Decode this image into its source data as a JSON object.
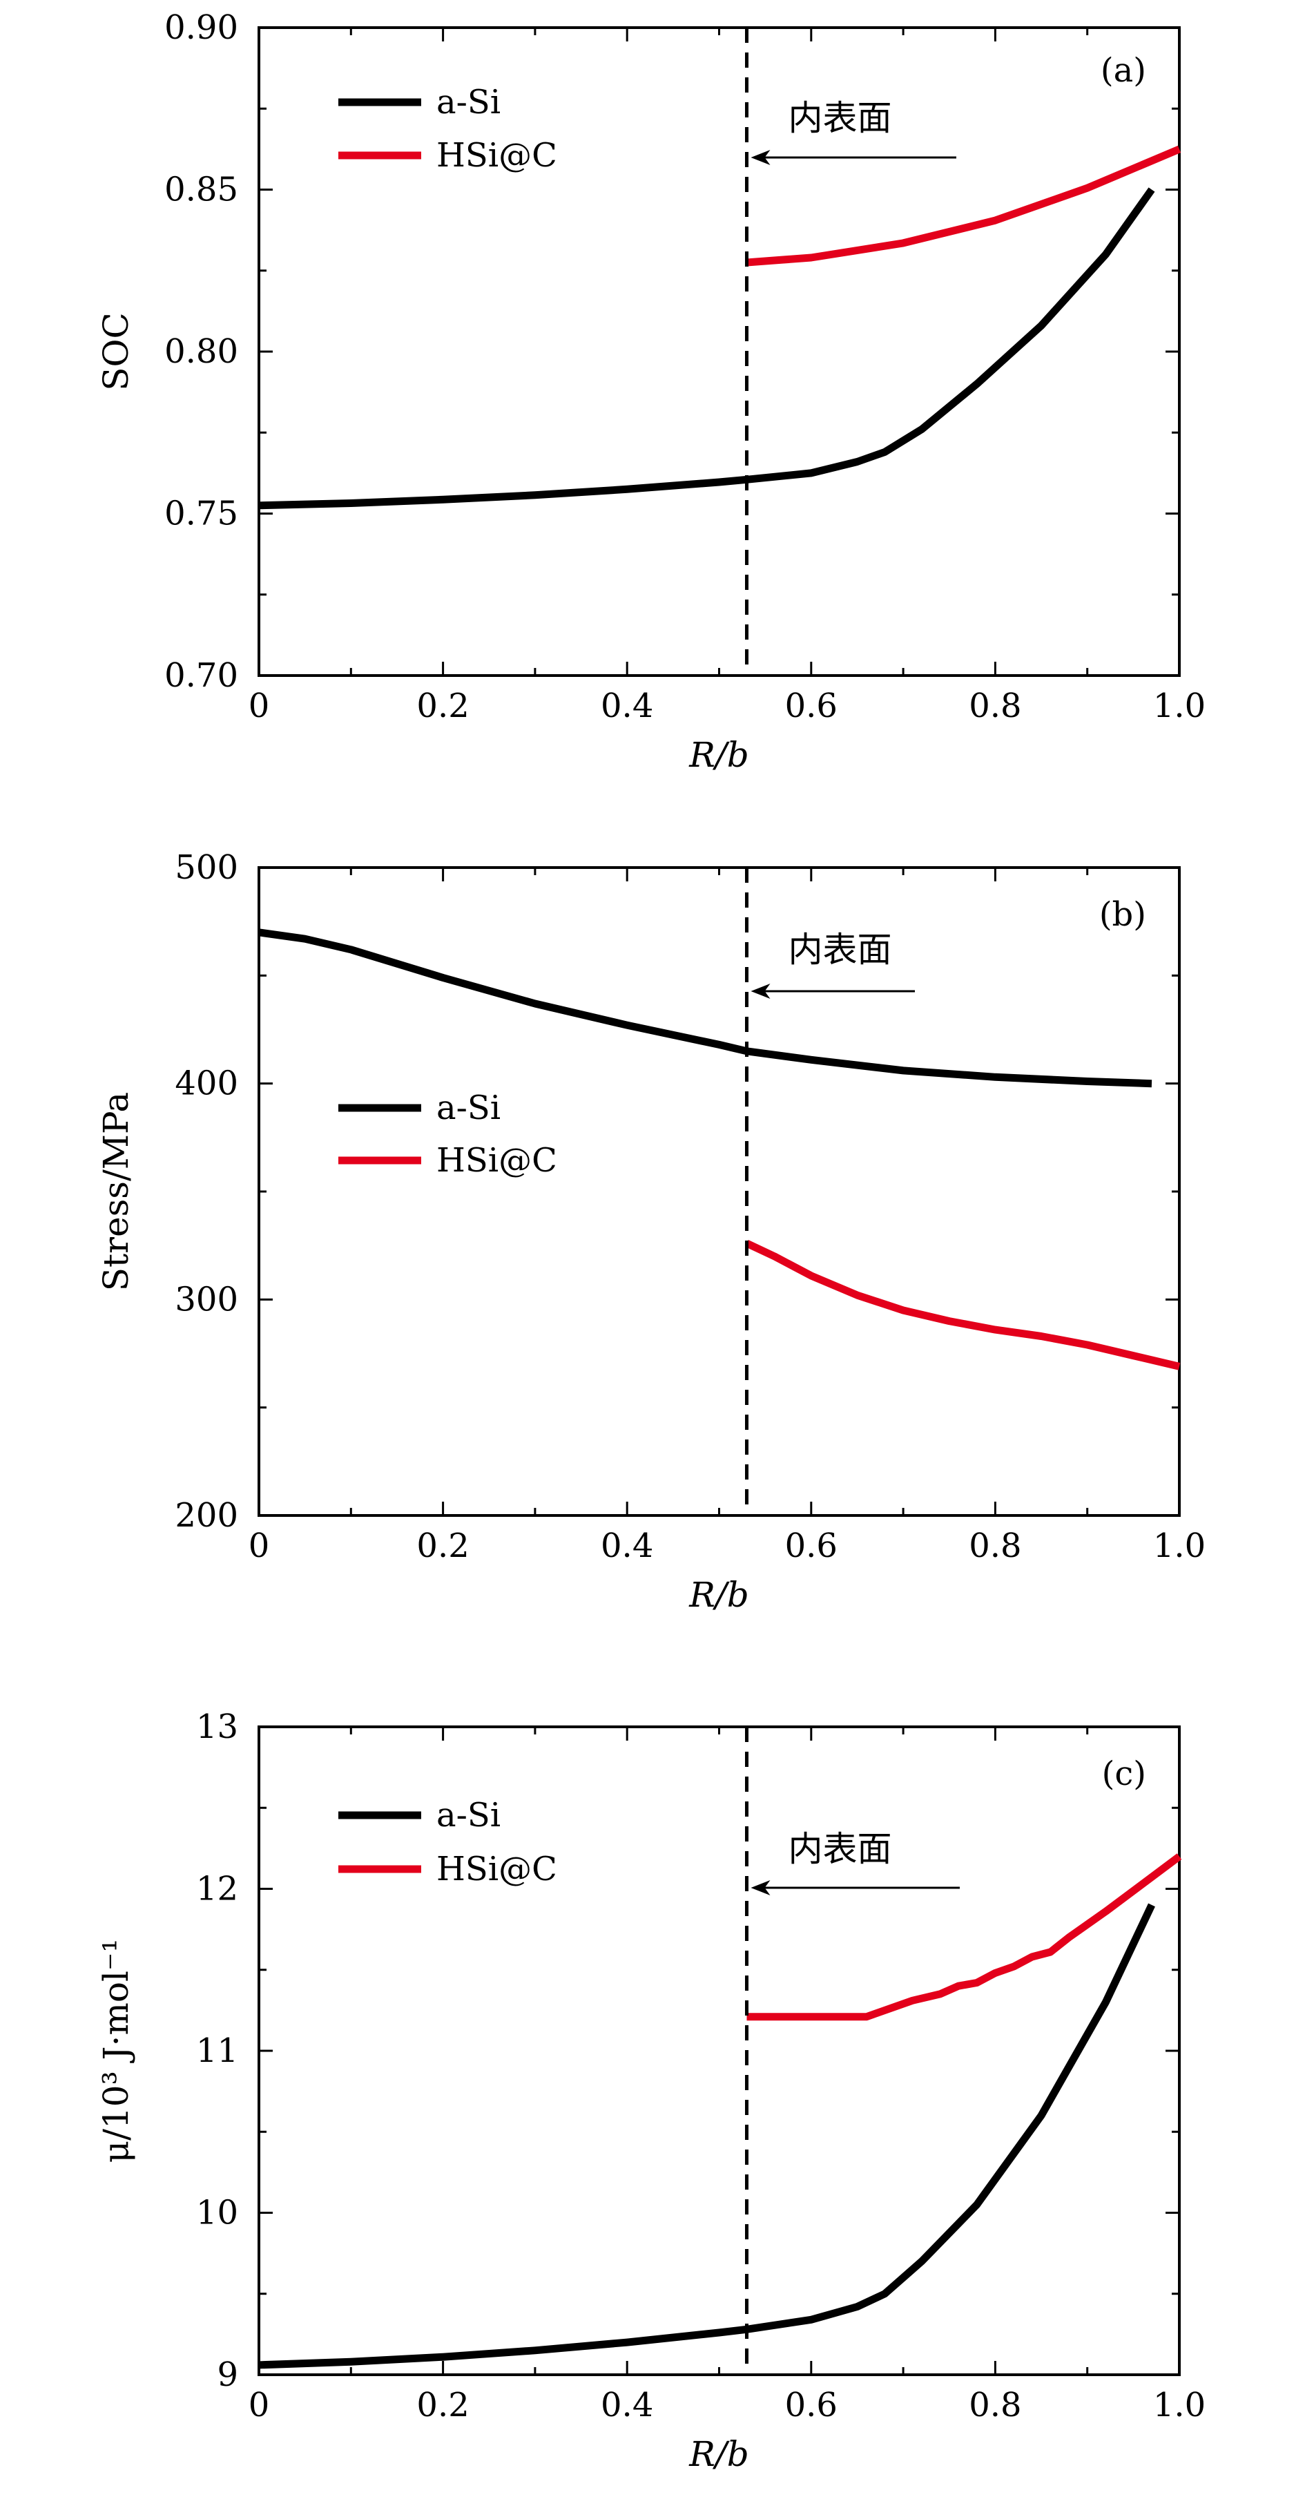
{
  "chart_data": [
    {
      "type": "line",
      "panel_label": "(a)",
      "xlabel": "R/b",
      "ylabel": "SOC",
      "xlim": [
        0,
        1.0
      ],
      "ylim": [
        0.7,
        0.9
      ],
      "x_ticks": [
        "0",
        "0.2",
        "0.4",
        "0.6",
        "0.8",
        "1.0"
      ],
      "y_ticks": [
        "0.70",
        "0.75",
        "0.80",
        "0.85",
        "0.90"
      ],
      "legend": "top-left",
      "annotation": {
        "text": "内表面",
        "x": 0.53
      },
      "series": [
        {
          "name": "a-Si",
          "color": "#000000",
          "x": [
            0,
            0.1,
            0.2,
            0.3,
            0.4,
            0.5,
            0.53,
            0.6,
            0.65,
            0.68,
            0.72,
            0.78,
            0.85,
            0.92,
            0.97
          ],
          "y": [
            0.7525,
            0.7532,
            0.7543,
            0.7557,
            0.7575,
            0.7597,
            0.7605,
            0.7625,
            0.766,
            0.769,
            0.776,
            0.79,
            0.808,
            0.83,
            0.85
          ]
        },
        {
          "name": "HSi@C",
          "color": "#e3001b",
          "x": [
            0.53,
            0.6,
            0.7,
            0.8,
            0.9,
            1.0
          ],
          "y": [
            0.8275,
            0.829,
            0.8335,
            0.8405,
            0.8505,
            0.8625
          ]
        }
      ]
    },
    {
      "type": "line",
      "panel_label": "(b)",
      "xlabel": "R/b",
      "ylabel": "Stress/MPa",
      "xlim": [
        0,
        1.0
      ],
      "ylim": [
        200,
        500
      ],
      "x_ticks": [
        "0",
        "0.2",
        "0.4",
        "0.6",
        "0.8",
        "1.0"
      ],
      "y_ticks": [
        "200",
        "300",
        "400",
        "500"
      ],
      "legend": "center-left",
      "annotation": {
        "text": "内表面",
        "x": 0.53
      },
      "series": [
        {
          "name": "a-Si",
          "color": "#000000",
          "x": [
            0,
            0.05,
            0.1,
            0.2,
            0.3,
            0.4,
            0.5,
            0.53,
            0.6,
            0.7,
            0.8,
            0.9,
            0.97
          ],
          "y": [
            470,
            467,
            462,
            449,
            437,
            427,
            418,
            415,
            411,
            406,
            403,
            401,
            400
          ]
        },
        {
          "name": "HSi@C",
          "color": "#e3001b",
          "x": [
            0.53,
            0.56,
            0.6,
            0.65,
            0.7,
            0.75,
            0.8,
            0.85,
            0.9,
            0.95,
            1.0
          ],
          "y": [
            326,
            320,
            311,
            302,
            295,
            290,
            286,
            283,
            279,
            274,
            269
          ]
        }
      ]
    },
    {
      "type": "line",
      "panel_label": "(c)",
      "xlabel": "R/b",
      "ylabel": "μ/10³ J·mol⁻¹",
      "xlim": [
        0,
        1.0
      ],
      "ylim": [
        9,
        13
      ],
      "x_ticks": [
        "0",
        "0.2",
        "0.4",
        "0.6",
        "0.8",
        "1.0"
      ],
      "y_ticks": [
        "9",
        "10",
        "11",
        "12",
        "13"
      ],
      "legend": "top-left",
      "annotation": {
        "text": "内表面",
        "x": 0.53
      },
      "series": [
        {
          "name": "a-Si",
          "color": "#000000",
          "x": [
            0,
            0.1,
            0.2,
            0.3,
            0.4,
            0.5,
            0.53,
            0.6,
            0.65,
            0.68,
            0.72,
            0.78,
            0.85,
            0.92,
            0.97
          ],
          "y": [
            9.06,
            9.08,
            9.11,
            9.15,
            9.2,
            9.26,
            9.28,
            9.34,
            9.42,
            9.5,
            9.7,
            10.05,
            10.6,
            11.3,
            11.9
          ]
        },
        {
          "name": "HSi@C",
          "color": "#e3001b",
          "x": [
            0.53,
            0.6,
            0.66,
            0.69,
            0.71,
            0.74,
            0.76,
            0.78,
            0.8,
            0.82,
            0.84,
            0.86,
            0.88,
            0.92,
            0.96,
            1.0
          ],
          "y": [
            11.21,
            11.21,
            11.21,
            11.27,
            11.31,
            11.35,
            11.4,
            11.42,
            11.48,
            11.52,
            11.58,
            11.61,
            11.7,
            11.86,
            12.03,
            12.2
          ]
        }
      ]
    }
  ]
}
